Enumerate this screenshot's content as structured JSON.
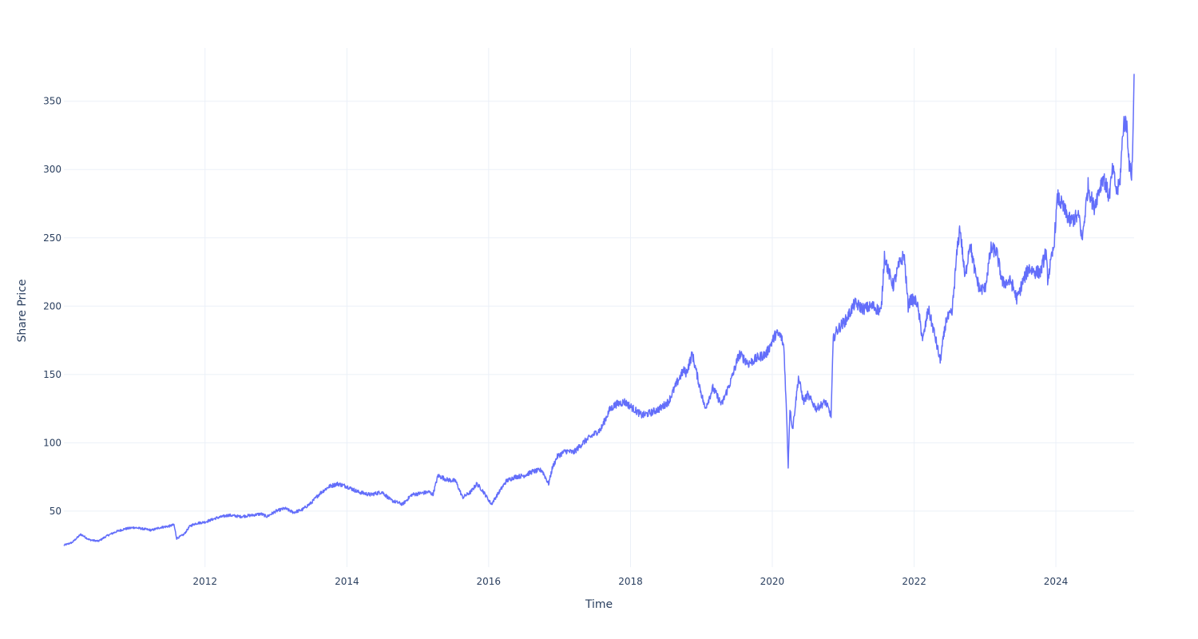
{
  "chart_data": {
    "type": "line",
    "xlabel": "Time",
    "ylabel": "Share Price",
    "xlim": [
      "2010-01-04",
      "2025-02-07"
    ],
    "ylim": [
      9,
      389
    ],
    "x_ticks": [
      "2012",
      "2014",
      "2016",
      "2018",
      "2020",
      "2022",
      "2024"
    ],
    "y_ticks": [
      "50",
      "100",
      "150",
      "200",
      "250",
      "300",
      "350"
    ],
    "grid": true,
    "line_color": "#636efa",
    "series": [
      {
        "x": [
          "2010-01-04",
          "2010-02-15",
          "2010-04-01",
          "2010-05-15",
          "2010-07-01",
          "2010-08-15",
          "2010-10-01",
          "2010-11-15",
          "2011-01-01",
          "2011-02-15",
          "2011-04-01",
          "2011-05-15",
          "2011-07-01",
          "2011-07-25",
          "2011-08-08",
          "2011-09-15",
          "2011-10-15",
          "2011-11-15",
          "2012-01-01",
          "2012-03-01",
          "2012-05-01",
          "2012-07-01",
          "2012-09-01",
          "2012-10-15",
          "2012-11-15",
          "2013-01-01",
          "2013-02-15",
          "2013-04-01",
          "2013-05-15",
          "2013-07-01",
          "2013-08-15",
          "2013-10-01",
          "2013-11-15",
          "2014-01-01",
          "2014-03-01",
          "2014-05-01",
          "2014-07-01",
          "2014-08-15",
          "2014-10-15",
          "2014-12-01",
          "2015-01-15",
          "2015-03-01",
          "2015-03-20",
          "2015-04-15",
          "2015-06-01",
          "2015-07-15",
          "2015-08-20",
          "2015-10-01",
          "2015-11-01",
          "2015-12-01",
          "2016-01-15",
          "2016-02-15",
          "2016-04-01",
          "2016-05-15",
          "2016-07-01",
          "2016-08-15",
          "2016-10-01",
          "2016-11-05",
          "2016-11-25",
          "2016-12-20",
          "2017-02-01",
          "2017-03-15",
          "2017-05-01",
          "2017-06-15",
          "2017-08-01",
          "2017-09-15",
          "2017-10-15",
          "2017-12-01",
          "2018-01-15",
          "2018-03-01",
          "2018-04-15",
          "2018-06-01",
          "2018-07-15",
          "2018-09-01",
          "2018-10-01",
          "2018-10-15",
          "2018-11-15",
          "2018-12-25",
          "2019-01-20",
          "2019-03-01",
          "2019-04-15",
          "2019-06-01",
          "2019-07-15",
          "2019-09-01",
          "2019-10-15",
          "2019-12-01",
          "2020-01-20",
          "2020-02-15",
          "2020-03-01",
          "2020-03-15",
          "2020-03-23",
          "2020-04-01",
          "2020-04-15",
          "2020-05-15",
          "2020-06-10",
          "2020-07-01",
          "2020-08-15",
          "2020-10-01",
          "2020-10-30",
          "2020-11-10",
          "2020-11-20",
          "2020-12-15",
          "2021-01-15",
          "2021-03-01",
          "2021-04-15",
          "2021-06-01",
          "2021-07-15",
          "2021-08-01",
          "2021-08-20",
          "2021-09-15",
          "2021-10-15",
          "2021-11-10",
          "2021-12-01",
          "2021-12-15",
          "2022-01-15",
          "2022-02-15",
          "2022-03-15",
          "2022-04-15",
          "2022-05-15",
          "2022-06-15",
          "2022-07-15",
          "2022-08-10",
          "2022-08-25",
          "2022-09-20",
          "2022-10-15",
          "2022-11-10",
          "2022-12-05",
          "2023-01-01",
          "2023-02-01",
          "2023-03-01",
          "2023-04-01",
          "2023-05-15",
          "2023-06-15",
          "2023-07-15",
          "2023-08-15",
          "2023-09-15",
          "2023-10-15",
          "2023-11-10",
          "2023-11-20",
          "2023-12-20",
          "2024-01-10",
          "2024-02-15",
          "2024-03-15",
          "2024-04-15",
          "2024-05-01",
          "2024-05-15",
          "2024-06-15",
          "2024-07-15",
          "2024-08-10",
          "2024-09-01",
          "2024-10-01",
          "2024-10-20",
          "2024-11-10",
          "2024-11-25",
          "2024-12-15",
          "2025-01-01",
          "2025-01-15",
          "2025-01-25",
          "2025-02-01",
          "2025-02-07"
        ],
        "values": [
          25,
          27,
          33,
          29,
          28,
          32,
          35,
          37,
          38,
          37,
          36,
          38,
          39,
          40,
          30,
          33,
          39,
          41,
          42,
          45,
          47,
          46,
          47,
          48,
          46,
          50,
          52,
          49,
          51,
          56,
          63,
          68,
          70,
          68,
          64,
          62,
          64,
          58,
          55,
          62,
          63,
          64,
          62,
          76,
          73,
          72,
          60,
          64,
          70,
          65,
          55,
          62,
          72,
          75,
          76,
          79,
          80,
          70,
          82,
          90,
          94,
          93,
          100,
          105,
          110,
          124,
          128,
          130,
          125,
          120,
          122,
          125,
          130,
          145,
          153,
          151,
          165,
          140,
          125,
          140,
          128,
          145,
          165,
          158,
          162,
          165,
          180,
          178,
          170,
          120,
          83,
          125,
          110,
          148,
          130,
          135,
          125,
          130,
          120,
          175,
          180,
          185,
          190,
          202,
          198,
          200,
          196,
          238,
          226,
          215,
          230,
          238,
          200,
          205,
          203,
          175,
          198,
          180,
          160,
          190,
          195,
          240,
          258,
          220,
          247,
          225,
          212,
          213,
          242,
          240,
          217,
          218,
          205,
          218,
          228,
          225,
          225,
          240,
          220,
          242,
          280,
          270,
          262,
          265,
          265,
          248,
          288,
          272,
          285,
          295,
          280,
          300,
          283,
          290,
          335,
          332,
          300,
          297,
          320,
          370
        ]
      }
    ]
  }
}
